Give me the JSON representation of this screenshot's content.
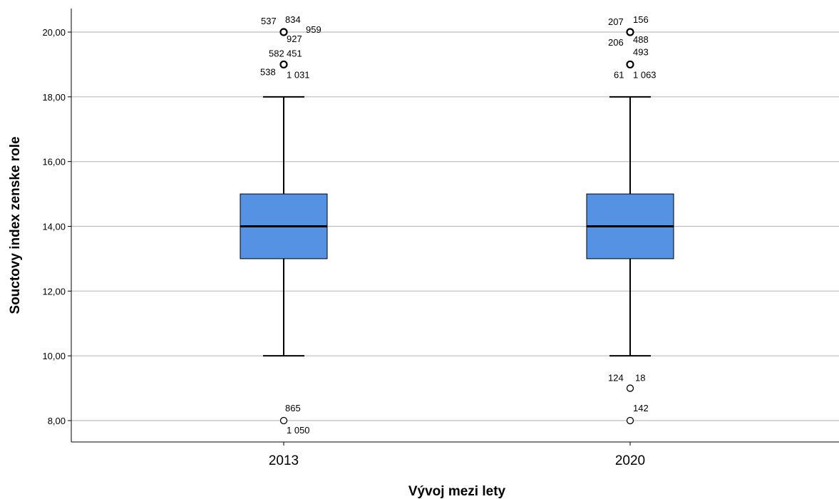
{
  "chart_data": {
    "type": "boxplot",
    "xlabel": "Vývoj mezi lety",
    "ylabel": "Souctovy index zenske role",
    "ylim": [
      7.3,
      20.65
    ],
    "yticks": [
      8,
      10,
      12,
      14,
      16,
      18,
      20
    ],
    "ytick_labels": [
      "8,00",
      "10,00",
      "12,00",
      "14,00",
      "16,00",
      "18,00",
      "20,00"
    ],
    "grid": "horizontal",
    "box_color": "#5692e3",
    "groups": [
      {
        "category": "2013",
        "whisker_low": 10,
        "q1": 13,
        "median": 14,
        "q3": 15,
        "whisker_high": 18,
        "outliers": [
          {
            "value": 20,
            "labels": [
              "537",
              "834",
              "959",
              "927"
            ]
          },
          {
            "value": 19,
            "labels": [
              "582",
              "451",
              "538",
              "1 031"
            ]
          },
          {
            "value": 8,
            "labels": [
              "865",
              "1 050"
            ]
          }
        ]
      },
      {
        "category": "2020",
        "whisker_low": 10,
        "q1": 13,
        "median": 14,
        "q3": 15,
        "whisker_high": 18,
        "outliers": [
          {
            "value": 20,
            "labels": [
              "207",
              "156",
              "206",
              "488"
            ]
          },
          {
            "value": 19,
            "labels": [
              "493",
              "61",
              "1 063"
            ]
          },
          {
            "value": 9,
            "labels": [
              "124",
              "18"
            ]
          },
          {
            "value": 8,
            "labels": [
              "142"
            ]
          }
        ]
      }
    ]
  }
}
